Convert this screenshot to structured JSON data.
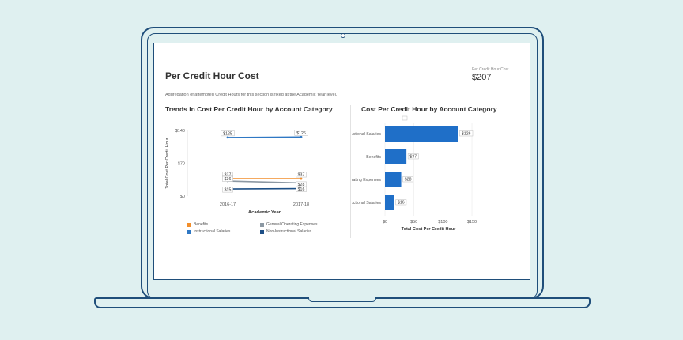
{
  "page": {
    "title": "Per Credit Hour Cost",
    "kpi_label": "Per Credit Hour Cost",
    "kpi_value": "$207",
    "note": "Aggregation of attempted Credit Hours for this section is fixed at the Academic Year level."
  },
  "colors": {
    "benefits": "#f28e2b",
    "general": "#8c98a3",
    "instructional": "#2f78c4",
    "non_instructional": "#1d4f86",
    "bar": "#1f6fc8"
  },
  "chart_data": [
    {
      "type": "line",
      "title": "Trends in Cost Per Credit Hour by Account Category",
      "xlabel": "Academic Year",
      "ylabel": "Total Cost Per Credit Hour",
      "categories": [
        "2016-17",
        "2017-18"
      ],
      "ylim": [
        0,
        140
      ],
      "yticks": [
        {
          "value": 0,
          "label": "$0"
        },
        {
          "value": 70,
          "label": "$70"
        },
        {
          "value": 140,
          "label": "$140"
        }
      ],
      "series": [
        {
          "name": "Benefits",
          "color_key": "benefits",
          "values": [
            37,
            37
          ],
          "labels": [
            "$37",
            "$37"
          ]
        },
        {
          "name": "General Operating Expenses",
          "color_key": "general",
          "values": [
            32,
            28
          ],
          "labels": [
            "$32",
            "$28"
          ]
        },
        {
          "name": "Instructional Salaries",
          "color_key": "instructional",
          "values": [
            125,
            126
          ],
          "labels": [
            "$125",
            "$126"
          ]
        },
        {
          "name": "Non-Instructional Salaries",
          "color_key": "non_instructional",
          "values": [
            15,
            16
          ],
          "labels": [
            "$15",
            "$16"
          ]
        }
      ],
      "extra_label": "$36",
      "legend_position": "bottom",
      "grid": false
    },
    {
      "type": "bar",
      "orientation": "horizontal",
      "title": "Cost Per Credit Hour by Account Category",
      "xlabel": "Total Cost Per Credit Hour",
      "categories": [
        "Instructional Salaries",
        "Benefits",
        "General Operating Expenses",
        "Non-Instructional Salaries"
      ],
      "values": [
        126,
        37,
        28,
        16
      ],
      "labels": [
        "$126",
        "$37",
        "$28",
        "$16"
      ],
      "xlim": [
        0,
        150
      ],
      "xticks": [
        {
          "value": 0,
          "label": "$0"
        },
        {
          "value": 50,
          "label": "$50"
        },
        {
          "value": 100,
          "label": "$100"
        },
        {
          "value": 150,
          "label": "$150"
        }
      ],
      "grid": true
    }
  ]
}
